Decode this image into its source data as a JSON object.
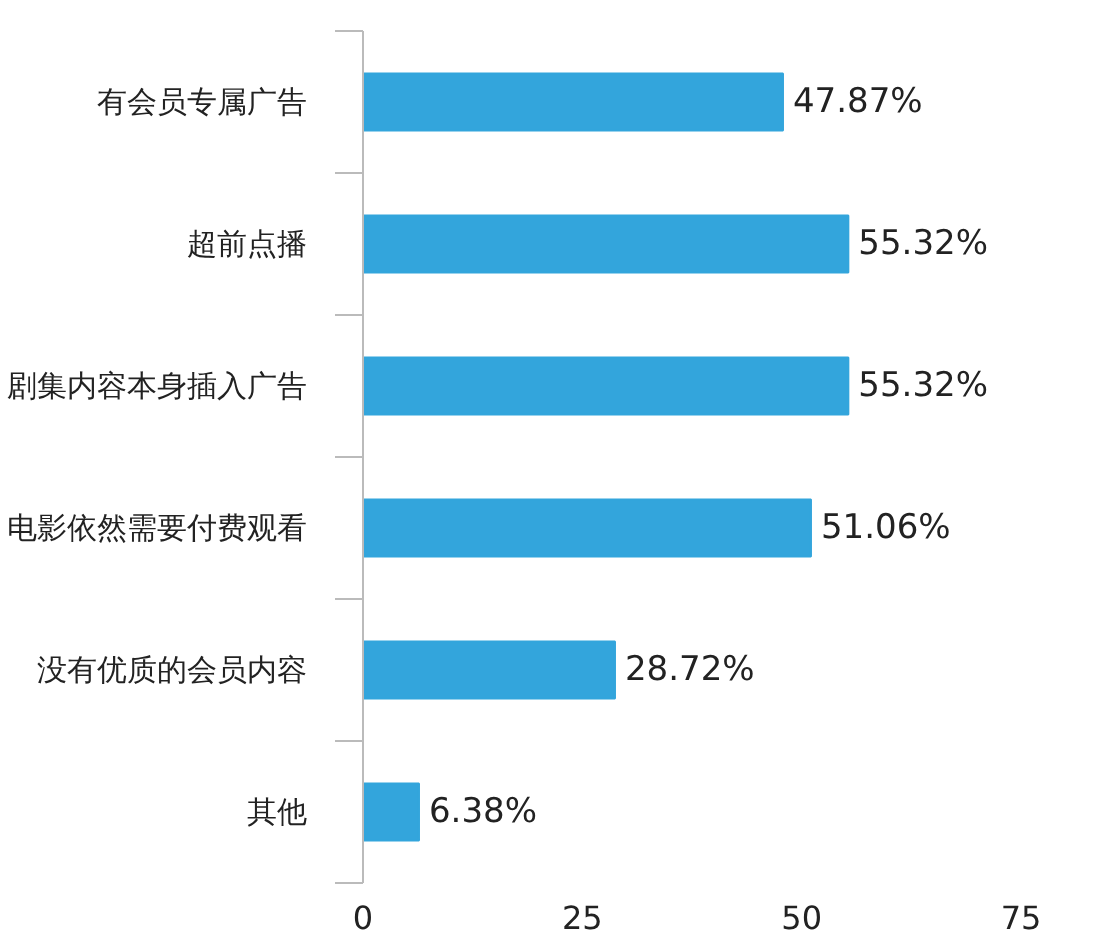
{
  "chart_data": {
    "type": "bar",
    "orientation": "horizontal",
    "categories": [
      "有会员专属广告",
      "超前点播",
      "剧集内容本身插入广告",
      "电影依然需要付费观看",
      "没有优质的会员内容",
      "其他"
    ],
    "values": [
      47.87,
      55.32,
      55.32,
      51.06,
      28.72,
      6.38
    ],
    "value_labels": [
      "47.87%",
      "55.32%",
      "55.32%",
      "51.06%",
      "28.72%",
      "6.38%"
    ],
    "color": "#33a5dc",
    "xlim": [
      0,
      75
    ],
    "xticks": [
      0,
      25,
      50,
      75
    ]
  }
}
